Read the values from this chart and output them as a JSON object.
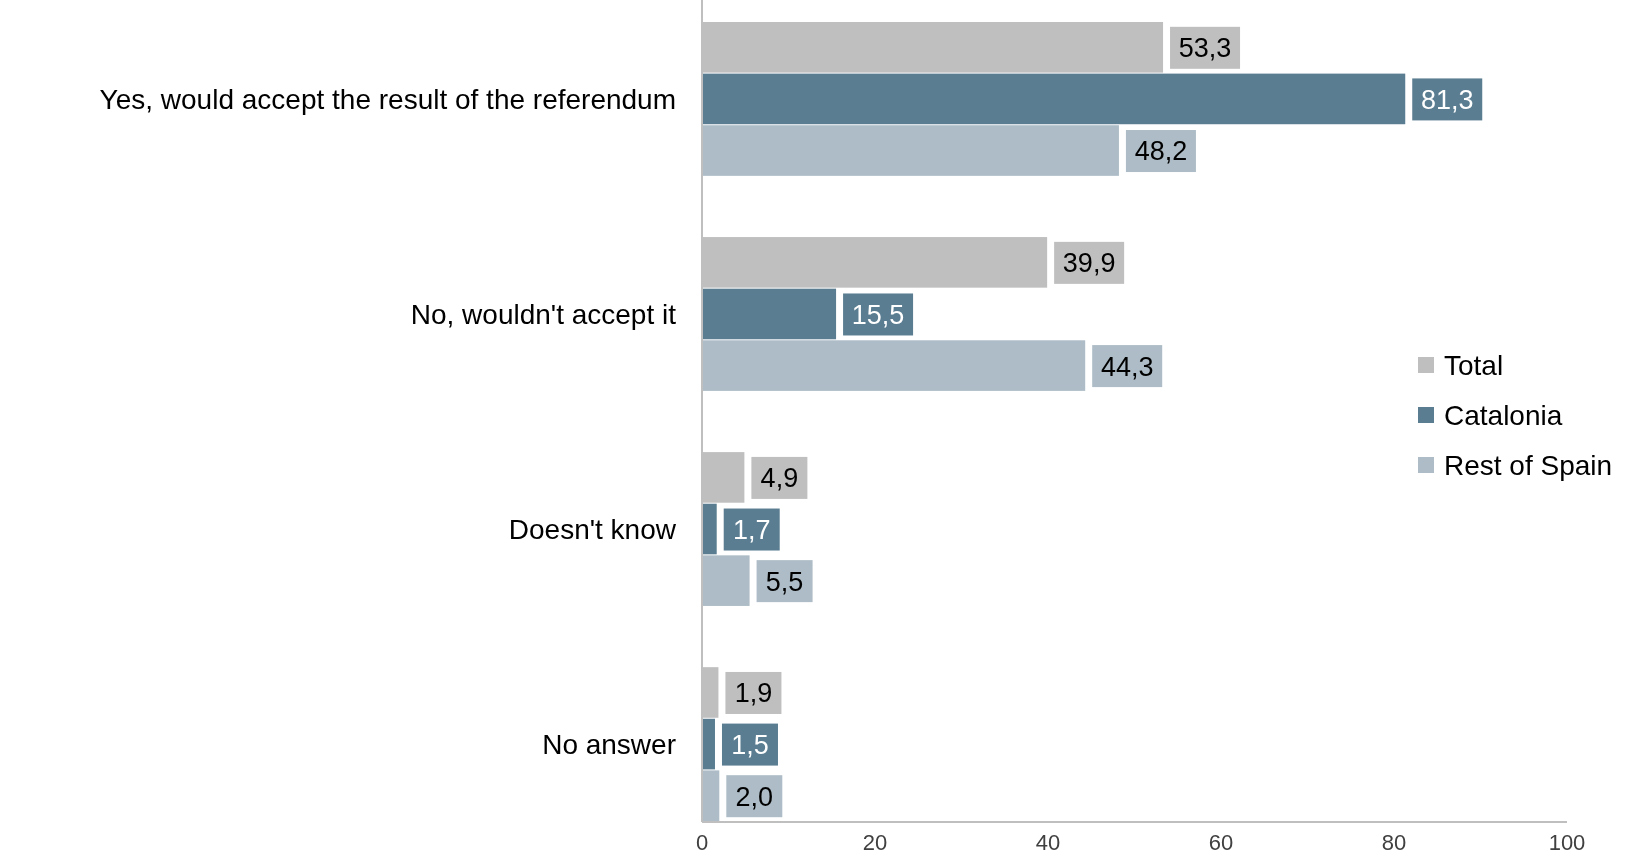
{
  "chart_data": {
    "type": "bar",
    "orientation": "horizontal",
    "categories": [
      "Yes, would accept the result of the referendum",
      "No, wouldn't accept it",
      "Doesn't know",
      "No answer"
    ],
    "series": [
      {
        "name": "Total",
        "color": "#bfbfbf",
        "values": [
          53.3,
          39.9,
          4.9,
          1.9
        ],
        "value_labels": [
          "53,3",
          "39,9",
          "4,9",
          "1,9"
        ]
      },
      {
        "name": "Catalonia",
        "color": "#5a7d91",
        "values": [
          81.3,
          15.5,
          1.7,
          1.5
        ],
        "value_labels": [
          "81,3",
          "15,5",
          "1,7",
          "1,5"
        ]
      },
      {
        "name": "Rest of Spain",
        "color": "#adbcc6",
        "values": [
          48.2,
          44.3,
          5.5,
          2.0
        ],
        "value_labels": [
          "48,2",
          "44,3",
          "5,5",
          "2,0"
        ]
      }
    ],
    "xlim": [
      0,
      100
    ],
    "xticks": [
      0,
      20,
      40,
      60,
      80,
      100
    ],
    "grid": false,
    "legend": "right"
  }
}
